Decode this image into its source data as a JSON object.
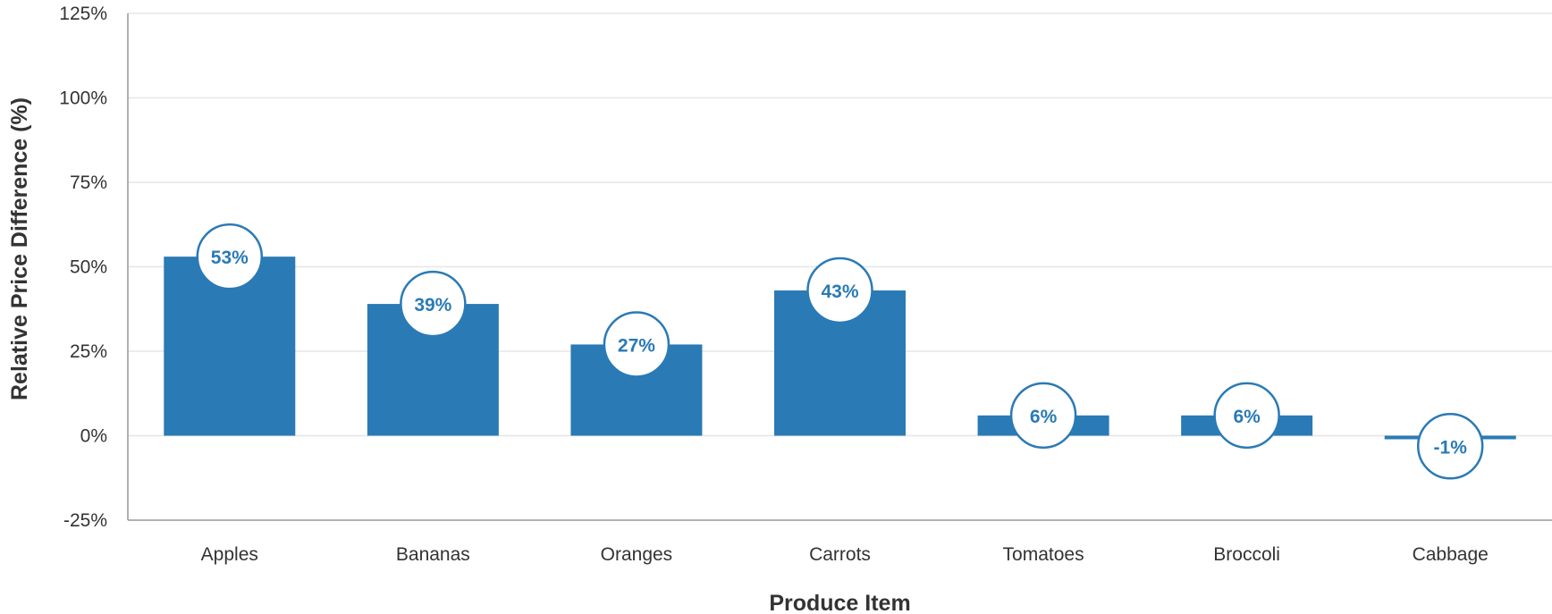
{
  "chart_data": {
    "type": "bar",
    "categories": [
      "Apples",
      "Bananas",
      "Oranges",
      "Carrots",
      "Tomatoes",
      "Broccoli",
      "Cabbage"
    ],
    "values": [
      53,
      39,
      27,
      43,
      6,
      6,
      -1
    ],
    "data_labels": [
      "53%",
      "39%",
      "27%",
      "43%",
      "6%",
      "6%",
      "-1%"
    ],
    "xlabel": "Produce Item",
    "ylabel": "Relative Price Difference (%)",
    "ylim": [
      -25,
      125
    ],
    "yticks": [
      -25,
      0,
      25,
      50,
      75,
      100,
      125
    ],
    "ytick_labels": [
      "-25%",
      "0%",
      "25%",
      "50%",
      "75%",
      "100%",
      "125%"
    ],
    "grid": true,
    "legend": "none",
    "colors": {
      "bar": "#2a7ab5",
      "label_text": "#2a7ab5",
      "label_bubble_fill": "#ffffff",
      "gridline": "#e6e6e6",
      "axis": "#999999"
    }
  }
}
